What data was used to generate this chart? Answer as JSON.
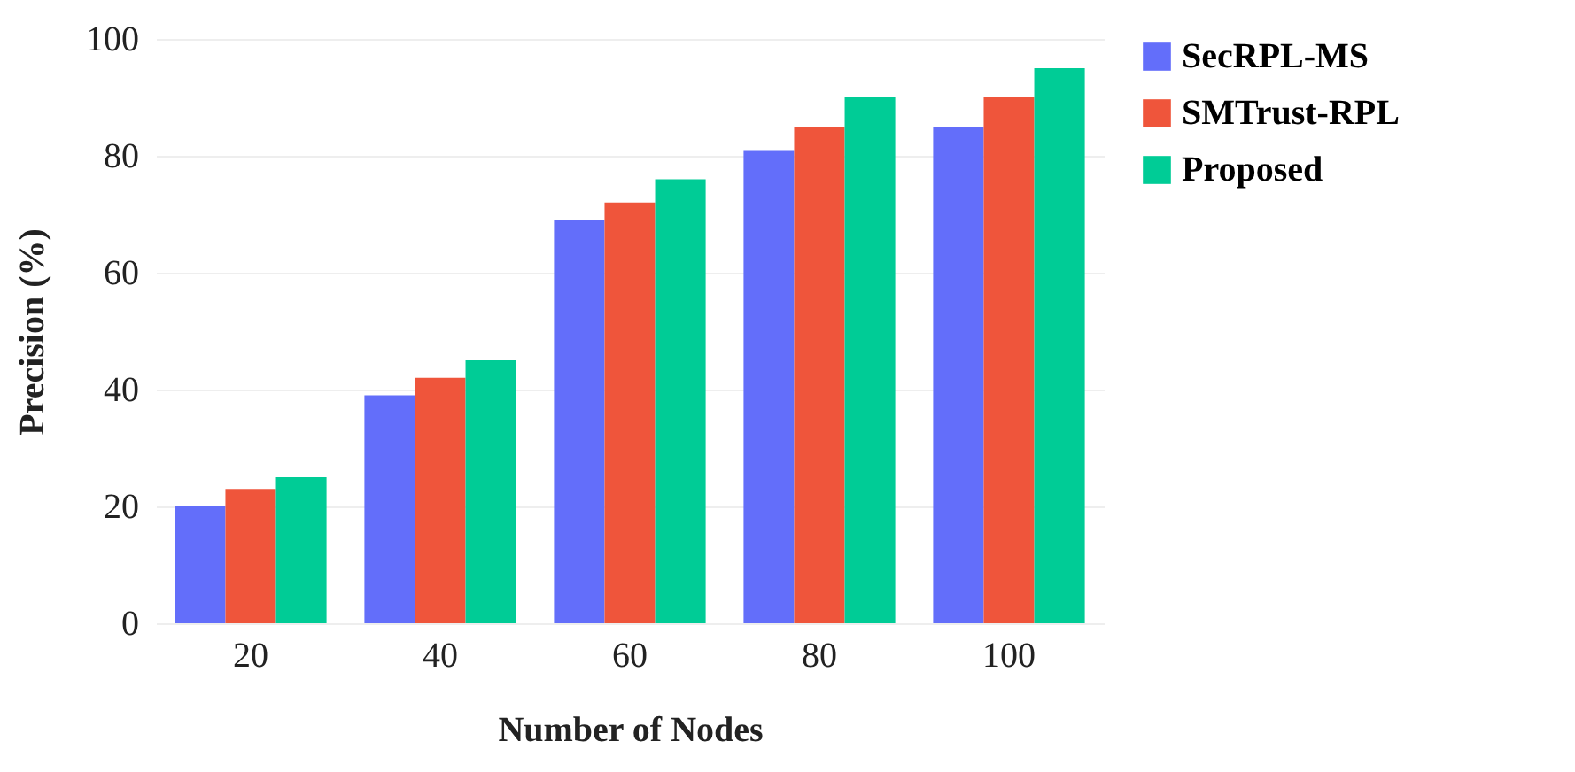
{
  "chart_data": {
    "type": "bar",
    "xlabel": "Number of Nodes",
    "ylabel": "Precision (%)",
    "categories": [
      "20",
      "40",
      "60",
      "80",
      "100"
    ],
    "series": [
      {
        "name": "SecRPL-MS",
        "color": "#636efa",
        "values": [
          20,
          39,
          69,
          81,
          85
        ]
      },
      {
        "name": "SMTrust-RPL",
        "color": "#ef553b",
        "values": [
          23,
          42,
          72,
          85,
          90
        ]
      },
      {
        "name": "Proposed",
        "color": "#00cc96",
        "values": [
          25,
          45,
          76,
          90,
          95
        ]
      }
    ],
    "ylim": [
      0,
      100
    ],
    "yticks": [
      0,
      20,
      40,
      60,
      80,
      100
    ],
    "grid": "y",
    "legend": "top right"
  }
}
